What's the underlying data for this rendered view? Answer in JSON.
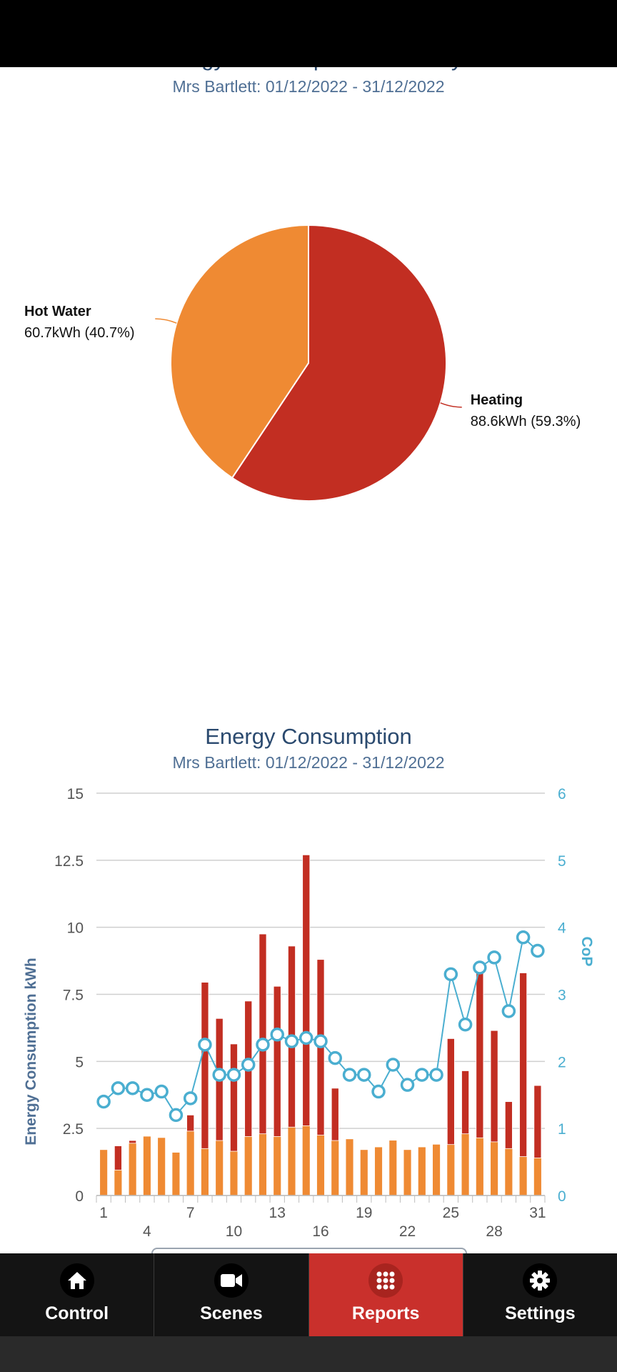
{
  "summary": {
    "title": "Energy Consumption Summary",
    "subtitle": "Mrs Bartlett: 01/12/2022 - 31/12/2022"
  },
  "chart_data": [
    {
      "type": "pie",
      "title": "Energy Consumption Summary",
      "subtitle": "Mrs Bartlett: 01/12/2022 - 31/12/2022",
      "slices": [
        {
          "name": "Heating",
          "value": 88.6,
          "percent": 59.3,
          "label": "88.6kWh (59.3%)",
          "color": "#c22e22"
        },
        {
          "name": "Hot Water",
          "value": 60.7,
          "percent": 40.7,
          "label": "60.7kWh (40.7%)",
          "color": "#ef8a33"
        }
      ]
    },
    {
      "type": "bar",
      "title": "Energy Consumption",
      "subtitle": "Mrs Bartlett: 01/12/2022 - 31/12/2022",
      "ylabel": "Energy Consumption kWh",
      "y2label": "CoP",
      "ylim": [
        0,
        15
      ],
      "y2lim": [
        0,
        6
      ],
      "yticks": [
        "0",
        "2.5",
        "5",
        "7.5",
        "10",
        "12.5",
        "15"
      ],
      "y2ticks": [
        "0",
        "1",
        "2",
        "3",
        "4",
        "5",
        "6"
      ],
      "xticks_top": [
        "1",
        "7",
        "13",
        "19",
        "25",
        "31"
      ],
      "xticks_bottom": [
        "4",
        "10",
        "16",
        "22",
        "28"
      ],
      "grid": true,
      "stacked": true,
      "x": [
        1,
        2,
        3,
        4,
        5,
        6,
        7,
        8,
        9,
        10,
        11,
        12,
        13,
        14,
        15,
        16,
        17,
        18,
        19,
        20,
        21,
        22,
        23,
        24,
        25,
        26,
        27,
        28,
        29,
        30,
        31
      ],
      "series": [
        {
          "name": "Hot Water",
          "kind": "bar",
          "color": "#ef8a33",
          "values": [
            1.7,
            0.95,
            1.95,
            2.2,
            2.15,
            1.6,
            2.4,
            1.75,
            2.05,
            1.65,
            2.2,
            2.3,
            2.2,
            2.55,
            2.6,
            2.25,
            2.05,
            2.1,
            1.7,
            1.8,
            2.05,
            1.7,
            1.8,
            1.9,
            1.9,
            2.3,
            2.15,
            2.0,
            1.75,
            1.45,
            1.4
          ]
        },
        {
          "name": "Heating",
          "kind": "bar",
          "color": "#c22e22",
          "values": [
            0,
            0.9,
            0.1,
            0,
            0,
            0,
            0.6,
            6.2,
            4.55,
            4.0,
            5.05,
            7.45,
            5.6,
            6.75,
            10.1,
            6.55,
            1.95,
            0,
            0,
            0,
            0,
            0,
            0,
            0,
            3.95,
            2.35,
            6.25,
            4.15,
            1.75,
            6.85,
            2.7
          ]
        },
        {
          "name": "CoP",
          "kind": "line",
          "axis": "y2",
          "color": "#4aaed0",
          "values": [
            1.4,
            1.6,
            1.6,
            1.5,
            1.55,
            1.2,
            1.45,
            2.25,
            1.8,
            1.8,
            1.95,
            2.25,
            2.4,
            2.3,
            2.35,
            2.3,
            2.05,
            1.8,
            1.8,
            1.55,
            1.95,
            1.65,
            1.8,
            1.8,
            3.3,
            2.55,
            3.4,
            3.55,
            2.75,
            3.85,
            3.65
          ]
        }
      ]
    }
  ],
  "tabs": [
    {
      "label": "Control",
      "icon": "home-icon",
      "active": false
    },
    {
      "label": "Scenes",
      "icon": "video-camera-icon",
      "active": false
    },
    {
      "label": "Reports",
      "icon": "grid-icon",
      "active": true
    },
    {
      "label": "Settings",
      "icon": "gear-icon",
      "active": false
    }
  ]
}
